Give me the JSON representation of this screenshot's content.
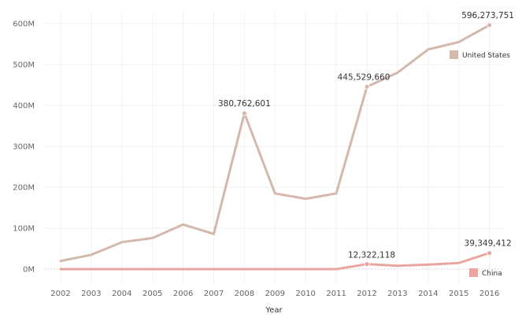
{
  "chart_data": {
    "type": "line",
    "title": "",
    "xlabel": "Year",
    "ylabel": "",
    "x": [
      2002,
      2003,
      2004,
      2005,
      2006,
      2007,
      2008,
      2009,
      2010,
      2011,
      2012,
      2013,
      2014,
      2015,
      2016
    ],
    "ylim": [
      -30000000,
      620000000
    ],
    "y_ticks": [
      {
        "value": 0,
        "label": "0M"
      },
      {
        "value": 100000000,
        "label": "100M"
      },
      {
        "value": 200000000,
        "label": "200M"
      },
      {
        "value": 300000000,
        "label": "300M"
      },
      {
        "value": 400000000,
        "label": "400M"
      },
      {
        "value": 500000000,
        "label": "500M"
      },
      {
        "value": 600000000,
        "label": "600M"
      }
    ],
    "x_tick_labels": [
      "2002",
      "2003",
      "2004",
      "2005",
      "2006",
      "2007",
      "2008",
      "2009",
      "2010",
      "2011",
      "2012",
      "2013",
      "2014",
      "2015",
      "2016"
    ],
    "grid": true,
    "zero_line": "dotted",
    "legend_placement": "inline-right",
    "series": [
      {
        "name": "United States",
        "color": "#d3b8ab",
        "values": [
          20000000,
          35000000,
          66000000,
          76000000,
          109000000,
          86000000,
          380762601,
          185000000,
          172000000,
          185000000,
          445529660,
          480000000,
          537000000,
          555000000,
          596273751
        ],
        "annotations": [
          {
            "x": 2008,
            "value": 380762601,
            "label": "380,762,601"
          },
          {
            "x": 2012,
            "value": 445529660,
            "label": "445,529,660"
          },
          {
            "x": 2016,
            "value": 596273751,
            "label": "596,273,751"
          }
        ]
      },
      {
        "name": "China",
        "color": "#eba5a0",
        "values": [
          0,
          0,
          0,
          0,
          0,
          0,
          0,
          0,
          0,
          0,
          12322118,
          8000000,
          11000000,
          15000000,
          39349412
        ],
        "annotations": [
          {
            "x": 2012,
            "value": 12322118,
            "label": "12,322,118"
          },
          {
            "x": 2016,
            "value": 39349412,
            "label": "39,349,412"
          }
        ]
      }
    ]
  }
}
